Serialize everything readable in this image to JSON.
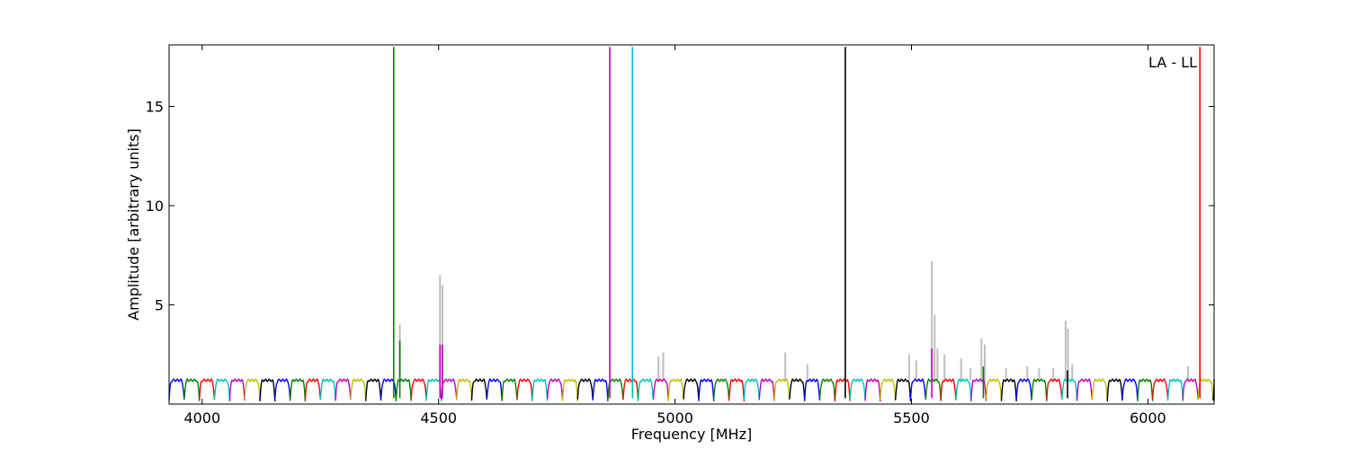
{
  "chart_data": {
    "type": "line",
    "annotation": "LA - LL",
    "xlabel": "Frequency [MHz]",
    "ylabel": "Amplitude [arbitrary units]",
    "xlim": [
      3930,
      6140
    ],
    "ylim": [
      0.0,
      18.1
    ],
    "xticks": [
      4000,
      4500,
      5000,
      5500,
      6000
    ],
    "yticks": [
      5,
      10,
      15
    ],
    "grid": false,
    "colors": {
      "raw": "#bfbfbf",
      "cycle": [
        "#0000ff",
        "#008000",
        "#ff0000",
        "#00bfbf",
        "#bf00bf",
        "#bfbf00",
        "#000000"
      ]
    },
    "ripple": {
      "channel_width_mhz": 32,
      "floor": 0.2,
      "level": 1.2
    },
    "spikes": [
      {
        "x": 4405,
        "y": 18.0,
        "color": "#008000"
      },
      {
        "x": 4862,
        "y": 18.0,
        "color": "#bf00bf"
      },
      {
        "x": 4910,
        "y": 18.0,
        "color": "#00bfbf"
      },
      {
        "x": 5360,
        "y": 18.0,
        "color": "#000000"
      },
      {
        "x": 6110,
        "y": 18.0,
        "color": "#ff0000"
      },
      {
        "x": 4418,
        "y": 3.2,
        "color": "#008000"
      },
      {
        "x": 4503,
        "y": 3.0,
        "color": "#bf00bf"
      },
      {
        "x": 4508,
        "y": 3.0,
        "color": "#bf00bf"
      },
      {
        "x": 5543,
        "y": 2.8,
        "color": "#bf00bf"
      },
      {
        "x": 5652,
        "y": 1.9,
        "color": "#008000"
      },
      {
        "x": 5830,
        "y": 1.7,
        "color": "#000000"
      }
    ],
    "raw_spikes": [
      {
        "x": 4418,
        "y": 4.0
      },
      {
        "x": 4503,
        "y": 6.5
      },
      {
        "x": 4508,
        "y": 6.0
      },
      {
        "x": 4965,
        "y": 2.4
      },
      {
        "x": 4975,
        "y": 2.6
      },
      {
        "x": 5233,
        "y": 2.6
      },
      {
        "x": 5280,
        "y": 2.0
      },
      {
        "x": 5495,
        "y": 2.5
      },
      {
        "x": 5510,
        "y": 2.2
      },
      {
        "x": 5543,
        "y": 7.2
      },
      {
        "x": 5549,
        "y": 4.5
      },
      {
        "x": 5555,
        "y": 2.8
      },
      {
        "x": 5570,
        "y": 2.5
      },
      {
        "x": 5605,
        "y": 2.3
      },
      {
        "x": 5625,
        "y": 1.8
      },
      {
        "x": 5648,
        "y": 3.3
      },
      {
        "x": 5655,
        "y": 3.0
      },
      {
        "x": 5700,
        "y": 1.8
      },
      {
        "x": 5745,
        "y": 1.9
      },
      {
        "x": 5770,
        "y": 1.8
      },
      {
        "x": 5800,
        "y": 1.8
      },
      {
        "x": 5826,
        "y": 4.2
      },
      {
        "x": 5831,
        "y": 3.8
      },
      {
        "x": 5840,
        "y": 2.0
      },
      {
        "x": 6085,
        "y": 1.9
      }
    ]
  }
}
